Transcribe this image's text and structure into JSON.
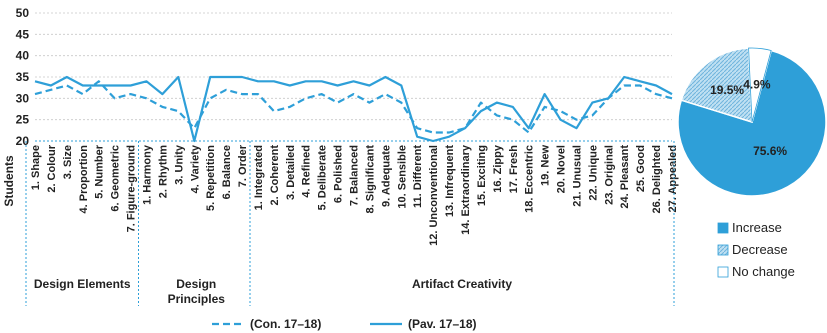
{
  "chart_data": [
    {
      "type": "line",
      "ylabel": "Students",
      "ylim": [
        20,
        50
      ],
      "yticks": [
        20,
        25,
        30,
        35,
        40,
        45,
        50
      ],
      "grid": "horizontal dotted",
      "categories": [
        "1. Shape",
        "2. Colour",
        "3. Size",
        "4. Proportion",
        "5. Number",
        "6. Geometric",
        "7. Figure-ground",
        "1. Harmony",
        "2. Rhythm",
        "3. Unity",
        "4. Variety",
        "5. Repetition",
        "6. Balance",
        "7. Order",
        "1. Integrated",
        "2. Coherent",
        "3. Detailed",
        "4. Refined",
        "5. Deliberate",
        "6. Polished",
        "7. Balanced",
        "8. Significant",
        "9. Adequate",
        "10. Sensible",
        "11. Different",
        "12. Unconventional",
        "13. Infrequent",
        "14. Extraordinary",
        "15. Exciting",
        "16. Zippy",
        "17. Fresh",
        "18. Eccentric",
        "19. New",
        "20. Novel",
        "21. Unusual",
        "22. Unique",
        "23. Original",
        "24. Pleasant",
        "25. Good",
        "26. Delighted",
        "27. Appealed"
      ],
      "groups": [
        {
          "label": "Design Elements",
          "start": 0,
          "end": 6
        },
        {
          "label": "Design Principles",
          "start": 7,
          "end": 13
        },
        {
          "label": "Artifact Creativity",
          "start": 14,
          "end": 40
        }
      ],
      "series": [
        {
          "name": "(Con. 17–18)",
          "style": "dashed",
          "color": "#2e9fd8",
          "values": [
            31,
            32,
            33,
            31,
            34,
            30,
            31,
            30,
            28,
            27,
            23,
            30,
            32,
            31,
            31,
            27,
            28,
            30,
            31,
            29,
            31,
            29,
            31,
            29,
            23,
            22,
            22,
            23,
            29,
            26,
            25,
            22,
            28,
            27,
            25,
            26,
            30,
            33,
            33,
            31,
            30
          ]
        },
        {
          "name": "(Pav. 17–18)",
          "style": "solid",
          "color": "#2e9fd8",
          "values": [
            34,
            33,
            35,
            33,
            33,
            33,
            33,
            34,
            31,
            35,
            20,
            35,
            35,
            35,
            34,
            34,
            33,
            34,
            34,
            33,
            34,
            33,
            35,
            33,
            21,
            20,
            21,
            23,
            27,
            29,
            28,
            23,
            31,
            25,
            23,
            29,
            30,
            35,
            34,
            33,
            31
          ]
        }
      ]
    },
    {
      "type": "pie",
      "slices": [
        {
          "name": "Increase",
          "value": 75.6,
          "label": "75.6%",
          "color": "#2e9fd8"
        },
        {
          "name": "Decrease",
          "value": 19.5,
          "label": "19.5%",
          "color": "#a8d4ec"
        },
        {
          "name": "No change",
          "value": 4.9,
          "label": "4.9%",
          "color": "#ffffff"
        }
      ],
      "legend": "bottom"
    }
  ]
}
